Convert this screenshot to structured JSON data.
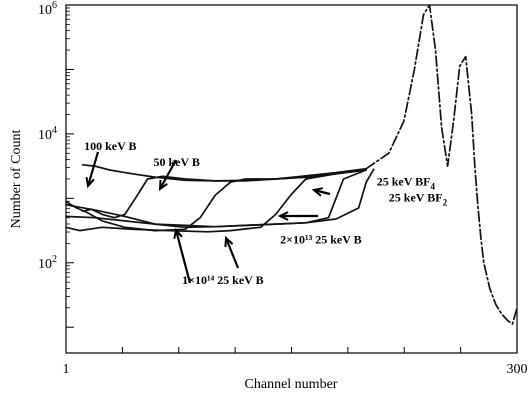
{
  "chart_data": {
    "type": "line",
    "xlabel": "Channel number",
    "ylabel": "Number of Count",
    "xlim": [
      1,
      300
    ],
    "ylim_log10": [
      0.6,
      6
    ],
    "y_scale": "log",
    "grid": false,
    "x_tick_labels": [
      {
        "value": 1,
        "label": "1"
      },
      {
        "value": 300,
        "label": "300"
      }
    ],
    "y_ticks": [
      {
        "base": "10",
        "exp": "6",
        "log10": 6
      },
      {
        "base": "10",
        "exp": "4",
        "log10": 4
      },
      {
        "base": "10",
        "exp": "2",
        "log10": 2
      }
    ],
    "annotations": [
      {
        "text": "100 keV B",
        "sub": "",
        "x": 13,
        "y_log10": 3.75
      },
      {
        "text": "50 keV B",
        "sub": "",
        "x": 59,
        "y_log10": 3.5
      },
      {
        "text": "25 keV BF",
        "sub": "4",
        "x": 207,
        "y_log10": 3.2
      },
      {
        "text": "25 keV BF",
        "sub": "2",
        "x": 215,
        "y_log10": 2.95
      },
      {
        "text": "2×10¹³ 25 keV B",
        "sub": "",
        "x": 143,
        "y_log10": 2.3
      },
      {
        "text": "1×10¹⁴ 25 keV B",
        "sub": "",
        "x": 78,
        "y_log10": 1.67
      }
    ],
    "series": [
      {
        "name": "100 keV B",
        "style": "solid",
        "x": [
          12,
          20,
          30,
          45,
          60,
          80,
          100,
          120,
          140,
          160,
          180,
          200
        ],
        "y_log10": [
          3.52,
          3.5,
          3.44,
          3.38,
          3.33,
          3.28,
          3.27,
          3.28,
          3.3,
          3.35,
          3.4,
          3.46
        ]
      },
      {
        "name": "50 keV B",
        "style": "solid",
        "x": [
          12,
          18,
          25,
          33,
          40,
          47,
          55,
          65,
          80,
          100,
          120,
          140,
          160,
          180,
          200
        ],
        "y_log10": [
          2.8,
          2.83,
          2.75,
          2.7,
          2.75,
          3.0,
          3.3,
          3.34,
          3.3,
          3.27,
          3.27,
          3.3,
          3.33,
          3.38,
          3.44
        ]
      },
      {
        "name": "1×10¹⁴ 25 keV B",
        "style": "solid",
        "x": [
          1,
          8,
          15,
          25,
          40,
          60,
          80,
          90,
          100,
          110,
          120,
          140,
          160,
          180,
          200
        ],
        "y_log10": [
          2.95,
          2.85,
          2.78,
          2.65,
          2.55,
          2.5,
          2.52,
          2.7,
          3.05,
          3.25,
          3.3,
          3.3,
          3.33,
          3.38,
          3.44
        ]
      },
      {
        "name": "2×10¹³ 25 keV B",
        "style": "solid",
        "x": [
          1,
          10,
          25,
          45,
          70,
          95,
          110,
          130,
          140,
          150,
          160,
          180,
          200
        ],
        "y_log10": [
          2.55,
          2.5,
          2.55,
          2.52,
          2.5,
          2.48,
          2.5,
          2.55,
          2.75,
          3.05,
          3.3,
          3.38,
          3.45
        ]
      },
      {
        "name": "25 keV BF₂",
        "style": "solid",
        "x": [
          1,
          20,
          40,
          60,
          80,
          100,
          120,
          140,
          160,
          175,
          180,
          185,
          200
        ],
        "y_log10": [
          2.9,
          2.82,
          2.72,
          2.6,
          2.58,
          2.56,
          2.58,
          2.6,
          2.62,
          2.7,
          3.0,
          3.3,
          3.44
        ]
      },
      {
        "name": "25 keV BF₄",
        "style": "solid",
        "x": [
          1,
          20,
          40,
          60,
          80,
          100,
          120,
          140,
          160,
          180,
          195,
          200,
          205
        ],
        "y_log10": [
          2.72,
          2.7,
          2.65,
          2.6,
          2.55,
          2.56,
          2.58,
          2.6,
          2.62,
          2.68,
          2.85,
          3.25,
          3.45
        ]
      },
      {
        "name": "",
        "style": "dashed",
        "x": [
          200,
          215,
          225,
          232,
          238,
          242,
          246,
          250,
          254,
          258,
          262,
          266,
          270,
          272,
          274,
          276,
          278,
          282,
          286,
          290,
          294,
          297,
          300
        ],
        "y_log10": [
          3.46,
          3.7,
          4.2,
          5.0,
          5.85,
          6.0,
          5.3,
          4.1,
          3.5,
          4.2,
          5.05,
          5.2,
          4.3,
          3.5,
          2.9,
          2.4,
          2.0,
          1.6,
          1.35,
          1.2,
          1.1,
          1.05,
          1.3
        ]
      }
    ]
  }
}
